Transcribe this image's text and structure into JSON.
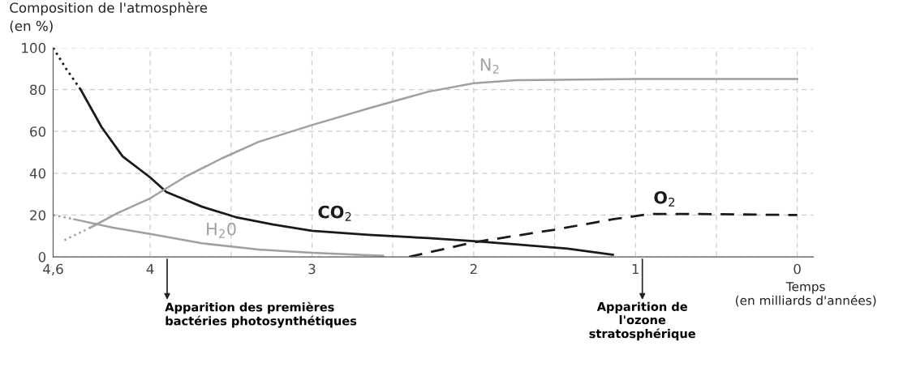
{
  "chart_data": {
    "type": "line",
    "ylabel": "Composition de l'atmosphère\n(en %)",
    "xlabel": "Temps\n(en milliards d'années)",
    "xlim": [
      4.6,
      -0.1
    ],
    "ylim": [
      0,
      100
    ],
    "xticks": [
      {
        "value": 4.6,
        "label": "4,6"
      },
      4,
      {
        "value": 3.5,
        "label": null
      },
      3,
      {
        "value": 2.5,
        "label": null
      },
      2,
      {
        "value": 1.5,
        "label": null
      },
      1,
      {
        "value": 0.5,
        "label": null
      },
      0
    ],
    "yticks": [
      0,
      20,
      40,
      60,
      80,
      100
    ],
    "grid": true,
    "legend": false,
    "marker": "none",
    "series": [
      {
        "name": "CO$_{2}$",
        "color": "#1a1a1a",
        "line_style": "solid",
        "x": [
          4.43,
          4.3,
          4.17,
          4.0,
          3.9,
          3.68,
          3.47,
          3.24,
          3.0,
          2.65,
          2.28,
          2.0,
          1.74,
          1.42,
          1.14
        ],
        "values": [
          80,
          62,
          48,
          38,
          31,
          24,
          19,
          15.5,
          12.5,
          10.5,
          9,
          7.5,
          6,
          4,
          1
        ]
      },
      {
        "color": "#1a1a1a",
        "line_style": "dotted",
        "x": [
          4.6,
          4.52,
          4.43
        ],
        "values": [
          100,
          90,
          80
        ]
      },
      {
        "name": "N$_{2}$",
        "color": "#a0a0a0",
        "line_style": "solid",
        "x": [
          4.37,
          4.2,
          4.0,
          3.79,
          3.56,
          3.33,
          3.0,
          2.65,
          2.28,
          2.0,
          1.74,
          1.0,
          0
        ],
        "values": [
          14,
          21,
          28,
          38,
          47,
          55,
          63,
          71,
          79,
          83,
          84.5,
          85,
          85
        ]
      },
      {
        "color": "#a0a0a0",
        "line_style": "dotted",
        "x": [
          4.53,
          4.37
        ],
        "values": [
          8,
          14
        ]
      },
      {
        "name": "H$_{2}$0",
        "color": "#a0a0a0",
        "line_style": "solid",
        "x": [
          4.47,
          4.23,
          4.0,
          3.68,
          3.33,
          3.0,
          2.56
        ],
        "values": [
          18,
          14,
          11,
          6.5,
          3.5,
          2,
          0.5
        ]
      },
      {
        "color": "#a0a0a0",
        "line_style": "dotted",
        "x": [
          4.6,
          4.47
        ],
        "values": [
          20,
          18
        ]
      },
      {
        "name": "O$_{2}$",
        "color": "#1a1a1a",
        "line_style": "dashed",
        "x": [
          2.4,
          2.0,
          1.5,
          1.14,
          0.91,
          0.6,
          0
        ],
        "values": [
          0,
          7,
          13,
          18,
          20.5,
          20.5,
          20
        ]
      }
    ],
    "annotations": [
      "Apparition des premières\nbactéries photosynthétiques",
      "Apparition de\nl'ozone\nstratosphérique"
    ]
  }
}
